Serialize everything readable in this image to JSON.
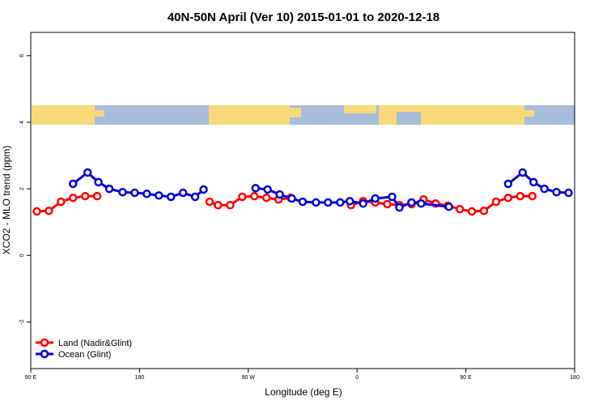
{
  "chart_data": {
    "type": "line",
    "title": "40N-50N April (Ver 10)   2015-01-01 to 2020-12-18",
    "x_label": "Longitude (deg E)",
    "y_label": "XCO2 - MLO trend (ppm)",
    "xlim": [
      90,
      540
    ],
    "ylim": [
      -3.4,
      6.7
    ],
    "xticks": [
      {
        "value": 90,
        "label": "90 E"
      },
      180,
      {
        "value": 270,
        "label": "90 W"
      },
      {
        "value": 360,
        "label": "0"
      },
      {
        "value": 450,
        "label": "90 E"
      },
      {
        "value": 540,
        "label": "180"
      }
    ],
    "yticks": [
      -2,
      0,
      2,
      4,
      6
    ],
    "legend": "bottom-left",
    "series": [
      {
        "name": "Land (Nadir&Glint)",
        "color": "#ff0000",
        "x": [
          95,
          105,
          115,
          125,
          135,
          145,
          190,
          238,
          245,
          255,
          265,
          275,
          285,
          295,
          305,
          330,
          355,
          365,
          375,
          385,
          395,
          405,
          415,
          425,
          435,
          445,
          455,
          465,
          475,
          485,
          495,
          505
        ],
        "values": [
          1.32,
          1.34,
          1.61,
          1.73,
          1.78,
          1.78,
          null,
          1.61,
          1.51,
          1.51,
          1.76,
          1.78,
          1.73,
          1.68,
          1.73,
          null,
          1.51,
          1.63,
          1.59,
          1.54,
          1.51,
          1.54,
          1.68,
          1.56,
          1.49,
          1.39,
          1.32,
          1.34,
          1.61,
          1.73,
          1.78,
          1.78
        ]
      },
      {
        "name": "Ocean (Glint)",
        "color": "#0000e0",
        "x": [
          125,
          137,
          146,
          155,
          166,
          176,
          186,
          196,
          206,
          216,
          226,
          233,
          255,
          276,
          286,
          296,
          306,
          315,
          326,
          336,
          346,
          354,
          365,
          375,
          389,
          395,
          405,
          413,
          436,
          460,
          485,
          497,
          506,
          515,
          525,
          535
        ],
        "values": [
          2.15,
          2.49,
          2.2,
          2.0,
          1.9,
          1.88,
          1.85,
          1.8,
          1.76,
          1.88,
          1.76,
          1.98,
          null,
          2.02,
          1.98,
          1.83,
          1.71,
          1.61,
          1.59,
          1.59,
          1.59,
          1.63,
          1.56,
          1.71,
          1.76,
          1.44,
          1.59,
          1.56,
          1.46,
          null,
          2.15,
          2.49,
          2.2,
          2.0,
          1.9,
          1.88
        ]
      }
    ]
  }
}
